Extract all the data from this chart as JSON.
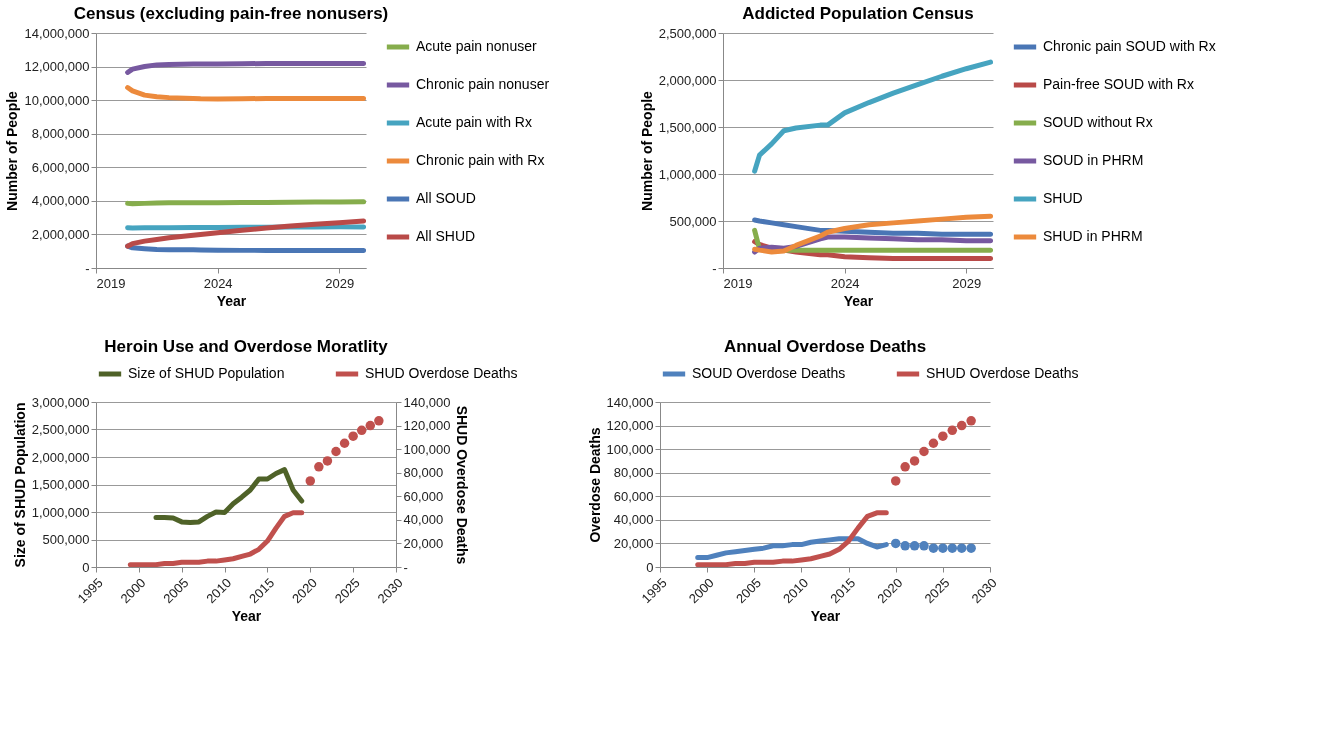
{
  "chart_data": [
    {
      "type": "line",
      "title": "Census (excluding pain-free nonusers)",
      "xlabel": "Year",
      "ylabel": "Number of People",
      "legend": "right",
      "grid": "y",
      "xlim": [
        2019,
        2030.1
      ],
      "xticks": [
        2019,
        2024,
        2029
      ],
      "ylim": [
        0,
        14000000
      ],
      "yticks": [
        {
          "value": 0,
          "label": "-"
        },
        {
          "value": 2000000,
          "label": "2,000,000"
        },
        {
          "value": 4000000,
          "label": "4,000,000"
        },
        {
          "value": 6000000,
          "label": "6,000,000"
        },
        {
          "value": 8000000,
          "label": "8,000,000"
        },
        {
          "value": 10000000,
          "label": "10,000,000"
        },
        {
          "value": 12000000,
          "label": "12,000,000"
        },
        {
          "value": 14000000,
          "label": "14,000,000"
        }
      ],
      "x": [
        2020.3,
        2020.5,
        2021,
        2021.5,
        2022,
        2023,
        2023.3,
        2024,
        2025,
        2026,
        2027,
        2028,
        2029,
        2030
      ],
      "series": [
        {
          "name": "Acute pain nonuser",
          "color": "#86ad4c",
          "values": [
            3850000,
            3830000,
            3850000,
            3870000,
            3880000,
            3880000,
            3880000,
            3890000,
            3900000,
            3900000,
            3920000,
            3930000,
            3930000,
            3940000
          ]
        },
        {
          "name": "Chronic pain nonuser",
          "color": "#7759a0",
          "values": [
            11650000,
            11850000,
            12000000,
            12100000,
            12120000,
            12150000,
            12150000,
            12150000,
            12170000,
            12180000,
            12180000,
            12180000,
            12180000,
            12180000
          ]
        },
        {
          "name": "Acute pain with Rx",
          "color": "#46a4c0",
          "values": [
            2400000,
            2380000,
            2400000,
            2400000,
            2400000,
            2420000,
            2420000,
            2420000,
            2430000,
            2430000,
            2440000,
            2440000,
            2450000,
            2450000
          ]
        },
        {
          "name": "Chronic pain with Rx",
          "color": "#ec8a3c",
          "values": [
            10750000,
            10550000,
            10300000,
            10200000,
            10150000,
            10100000,
            10080000,
            10070000,
            10080000,
            10100000,
            10100000,
            10100000,
            10100000,
            10100000
          ]
        },
        {
          "name": "All SOUD",
          "color": "#4a76b5",
          "values": [
            1300000,
            1200000,
            1150000,
            1100000,
            1080000,
            1080000,
            1070000,
            1060000,
            1050000,
            1050000,
            1050000,
            1050000,
            1050000,
            1050000
          ]
        },
        {
          "name": "All SHUD",
          "color": "#b94a48",
          "values": [
            1300000,
            1450000,
            1600000,
            1700000,
            1800000,
            1950000,
            2000000,
            2100000,
            2250000,
            2380000,
            2500000,
            2600000,
            2700000,
            2800000
          ]
        }
      ]
    },
    {
      "type": "line",
      "title": "Addicted Population Census",
      "xlabel": "Year",
      "ylabel": "Number of People",
      "legend": "right",
      "grid": "y",
      "xlim": [
        2019,
        2030.1
      ],
      "xticks": [
        2019,
        2024,
        2029
      ],
      "ylim": [
        0,
        2500000
      ],
      "yticks": [
        {
          "value": 0,
          "label": "-"
        },
        {
          "value": 500000,
          "label": "500,000"
        },
        {
          "value": 1000000,
          "label": "1,000,000"
        },
        {
          "value": 1500000,
          "label": "1,500,000"
        },
        {
          "value": 2000000,
          "label": "2,000,000"
        },
        {
          "value": 2500000,
          "label": "2,500,000"
        }
      ],
      "x": [
        2020.3,
        2020.5,
        2021,
        2021.5,
        2022,
        2023,
        2023.3,
        2024,
        2025,
        2026,
        2027,
        2028,
        2029,
        2030
      ],
      "series": [
        {
          "name": "Chronic pain SOUD with Rx",
          "color": "#4a76b5",
          "values": [
            510000,
            500000,
            480000,
            460000,
            440000,
            400000,
            400000,
            390000,
            380000,
            370000,
            370000,
            360000,
            360000,
            360000
          ]
        },
        {
          "name": "Pain-free SOUD with Rx",
          "color": "#b94a48",
          "values": [
            280000,
            250000,
            210000,
            190000,
            170000,
            140000,
            140000,
            120000,
            110000,
            100000,
            100000,
            100000,
            100000,
            100000
          ]
        },
        {
          "name": "SOUD without Rx",
          "color": "#86ad4c",
          "values": [
            400000,
            200000,
            190000,
            190000,
            190000,
            190000,
            190000,
            190000,
            190000,
            190000,
            190000,
            190000,
            190000,
            190000
          ]
        },
        {
          "name": "SOUD in PHRM",
          "color": "#7759a0",
          "values": [
            170000,
            210000,
            220000,
            210000,
            230000,
            310000,
            330000,
            330000,
            320000,
            310000,
            300000,
            300000,
            290000,
            290000
          ]
        },
        {
          "name": "SHUD",
          "color": "#46a4c0",
          "values": [
            1030000,
            1200000,
            1320000,
            1460000,
            1490000,
            1520000,
            1520000,
            1650000,
            1760000,
            1860000,
            1950000,
            2040000,
            2120000,
            2190000
          ]
        },
        {
          "name": "SHUD in PHRM",
          "color": "#ec8a3c",
          "values": [
            200000,
            190000,
            170000,
            180000,
            240000,
            340000,
            380000,
            420000,
            460000,
            480000,
            500000,
            520000,
            540000,
            550000
          ]
        }
      ]
    },
    {
      "type": "line",
      "title": "Heroin Use and Overdose Moratlity",
      "xlabel": "Year",
      "ylabel": "Size of SHUD Population",
      "y2label": "SHUD Overdose Deaths",
      "legend": "top",
      "grid": "y",
      "xlim": [
        1995,
        2030
      ],
      "xticks": [
        1995,
        2000,
        2005,
        2010,
        2015,
        2020,
        2025,
        2030
      ],
      "ylim": [
        0,
        3000000
      ],
      "yticks": [
        0,
        {
          "value": 500000,
          "label": "500,000"
        },
        {
          "value": 1000000,
          "label": "1,000,000"
        },
        {
          "value": 1500000,
          "label": "1,500,000"
        },
        {
          "value": 2000000,
          "label": "2,000,000"
        },
        {
          "value": 2500000,
          "label": "2,500,000"
        },
        {
          "value": 3000000,
          "label": "3,000,000"
        }
      ],
      "y2lim": [
        0,
        140000
      ],
      "y2ticks": [
        {
          "value": 0,
          "label": "-"
        },
        {
          "value": 20000,
          "label": "20,000"
        },
        {
          "value": 40000,
          "label": "40,000"
        },
        {
          "value": 60000,
          "label": "60,000"
        },
        {
          "value": 80000,
          "label": "80,000"
        },
        {
          "value": 100000,
          "label": "100,000"
        },
        {
          "value": 120000,
          "label": "120,000"
        },
        {
          "value": 140000,
          "label": "140,000"
        }
      ],
      "series": [
        {
          "name": "Size of SHUD Population",
          "color": "#4f6228",
          "x": [
            2002,
            2003,
            2004,
            2005,
            2006,
            2007,
            2008,
            2009,
            2010,
            2011,
            2012,
            2013,
            2014,
            2015,
            2016,
            2017,
            2018,
            2019
          ],
          "values": [
            900000,
            900000,
            890000,
            820000,
            810000,
            820000,
            920000,
            1000000,
            990000,
            1150000,
            1270000,
            1400000,
            1600000,
            1600000,
            1700000,
            1770000,
            1400000,
            1200000
          ]
        },
        {
          "name": "SHUD Overdose Deaths",
          "color": "#c0504d",
          "axis": "y2",
          "x": [
            1999,
            2000,
            2001,
            2002,
            2003,
            2004,
            2005,
            2006,
            2007,
            2008,
            2009,
            2010,
            2011,
            2012,
            2013,
            2014,
            2015,
            2016,
            2017,
            2018,
            2019
          ],
          "values": [
            2000,
            2000,
            2000,
            2000,
            3000,
            3000,
            4000,
            4000,
            4000,
            5000,
            5000,
            6000,
            7000,
            9000,
            11000,
            15000,
            22000,
            33000,
            43000,
            46000,
            46000
          ]
        },
        {
          "type": "scatter",
          "color": "#c0504d",
          "axis": "y2",
          "x": [
            2020,
            2021,
            2022,
            2023,
            2024,
            2025,
            2026,
            2027,
            2028
          ],
          "values": [
            73000,
            85000,
            90000,
            98000,
            105000,
            111000,
            116000,
            120000,
            124000
          ]
        }
      ]
    },
    {
      "type": "line",
      "title": "Annual Overdose Deaths",
      "xlabel": "Year",
      "ylabel": "Overdose Deaths",
      "legend": "top",
      "grid": "y",
      "xlim": [
        1995,
        2030
      ],
      "xticks": [
        1995,
        2000,
        2005,
        2010,
        2015,
        2020,
        2025,
        2030
      ],
      "ylim": [
        0,
        140000
      ],
      "yticks": [
        0,
        {
          "value": 20000,
          "label": "20,000"
        },
        {
          "value": 40000,
          "label": "40,000"
        },
        {
          "value": 60000,
          "label": "60,000"
        },
        {
          "value": 80000,
          "label": "80,000"
        },
        {
          "value": 100000,
          "label": "100,000"
        },
        {
          "value": 120000,
          "label": "120,000"
        },
        {
          "value": 140000,
          "label": "140,000"
        }
      ],
      "series": [
        {
          "name": "SOUD Overdose Deaths",
          "color": "#4f81bd",
          "x": [
            1999,
            2000,
            2001,
            2002,
            2003,
            2004,
            2005,
            2006,
            2007,
            2008,
            2009,
            2010,
            2011,
            2012,
            2013,
            2014,
            2015,
            2016,
            2017,
            2018,
            2019
          ],
          "values": [
            8000,
            8000,
            10000,
            12000,
            13000,
            14000,
            15000,
            16000,
            18000,
            18000,
            19000,
            19000,
            21000,
            22000,
            23000,
            24000,
            24000,
            24000,
            20000,
            17000,
            19000
          ]
        },
        {
          "name": "SHUD Overdose Deaths",
          "color": "#c0504d",
          "x": [
            1999,
            2000,
            2001,
            2002,
            2003,
            2004,
            2005,
            2006,
            2007,
            2008,
            2009,
            2010,
            2011,
            2012,
            2013,
            2014,
            2015,
            2016,
            2017,
            2018,
            2019
          ],
          "values": [
            2000,
            2000,
            2000,
            2000,
            3000,
            3000,
            4000,
            4000,
            4000,
            5000,
            5000,
            6000,
            7000,
            9000,
            11000,
            15000,
            22000,
            33000,
            43000,
            46000,
            46000
          ]
        },
        {
          "type": "scatter",
          "color": "#4f81bd",
          "x": [
            2020,
            2021,
            2022,
            2023,
            2024,
            2025,
            2026,
            2027,
            2028
          ],
          "values": [
            20000,
            18000,
            18000,
            18000,
            16000,
            16000,
            16000,
            16000,
            16000
          ]
        },
        {
          "type": "scatter",
          "color": "#c0504d",
          "x": [
            2020,
            2021,
            2022,
            2023,
            2024,
            2025,
            2026,
            2027,
            2028
          ],
          "values": [
            73000,
            85000,
            90000,
            98000,
            105000,
            111000,
            116000,
            120000,
            124000
          ]
        }
      ]
    }
  ]
}
